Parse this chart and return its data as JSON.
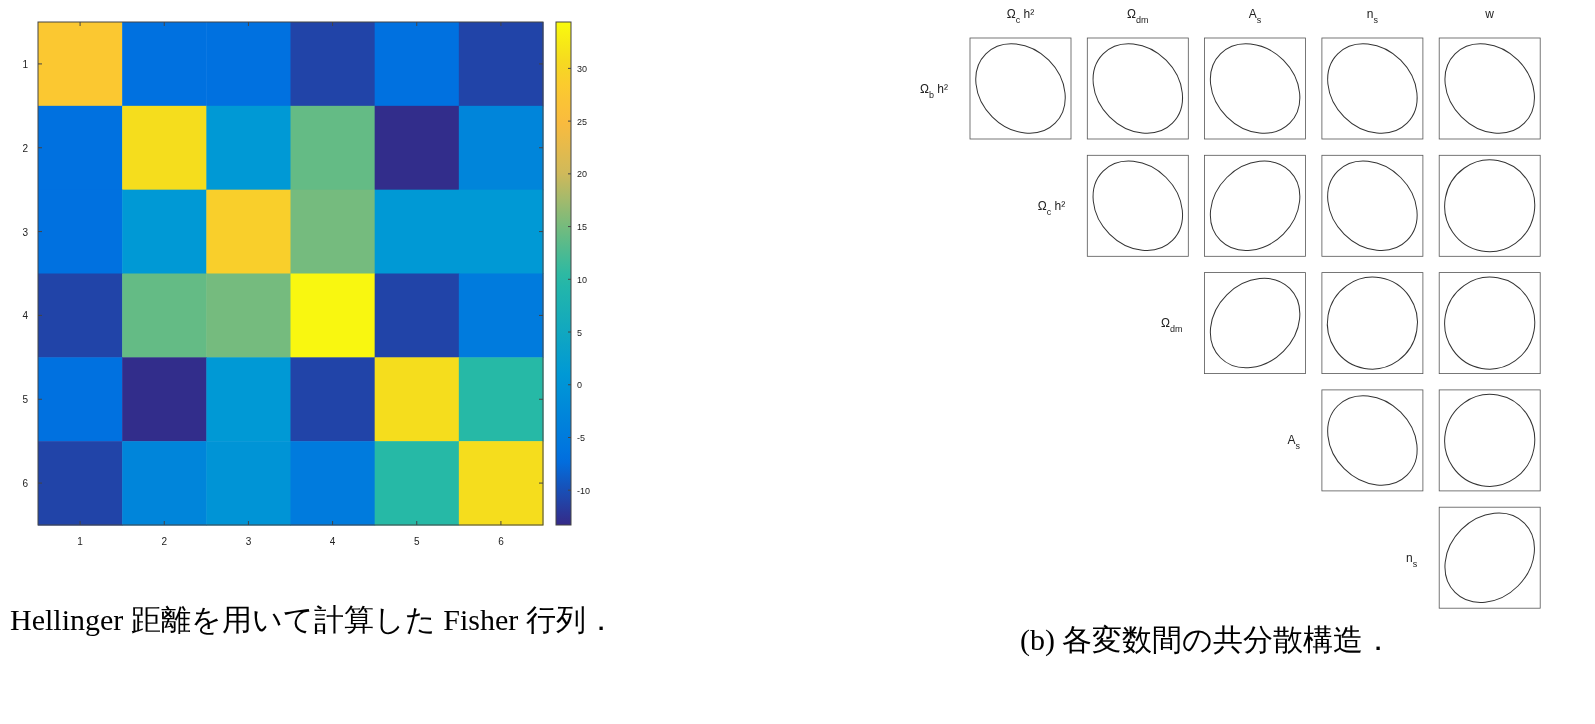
{
  "chart_data": [
    {
      "type": "heatmap",
      "categories": [
        "1",
        "2",
        "3",
        "4",
        "5",
        "6"
      ],
      "y_categories": [
        "1",
        "2",
        "3",
        "4",
        "5",
        "6"
      ],
      "cells": [
        [
          28,
          -7,
          -7,
          -11,
          -7,
          -11
        ],
        [
          -7,
          31,
          1,
          14,
          -13,
          -3
        ],
        [
          -7,
          1,
          29,
          15,
          1,
          1
        ],
        [
          -11,
          14,
          15,
          34,
          -11,
          -5
        ],
        [
          -7,
          -13,
          1,
          -11,
          31,
          10
        ],
        [
          -11,
          -3,
          0,
          -5,
          10,
          31
        ]
      ],
      "clim": [
        -13.3,
        34.4
      ],
      "cticks": [
        -10,
        -5,
        0,
        5,
        10,
        15,
        20,
        25,
        30
      ],
      "annotations": [
        "Hellinger 距離を用いて計算した Fisher 行列．"
      ]
    },
    {
      "type": "other",
      "categories": [
        "Ω$_{c}$ h²",
        "Ω$_{dm}$",
        "A$_{s}$",
        "n$_{s}$",
        "w"
      ],
      "y_categories": [
        "Ω$_{b}$ h²",
        "Ω$_{c}$ h²",
        "Ω$_{dm}$",
        "A$_{s}$",
        "n$_{s}$"
      ],
      "annotations": [
        "(b) 各変数間の共分散構造．"
      ]
    }
  ]
}
